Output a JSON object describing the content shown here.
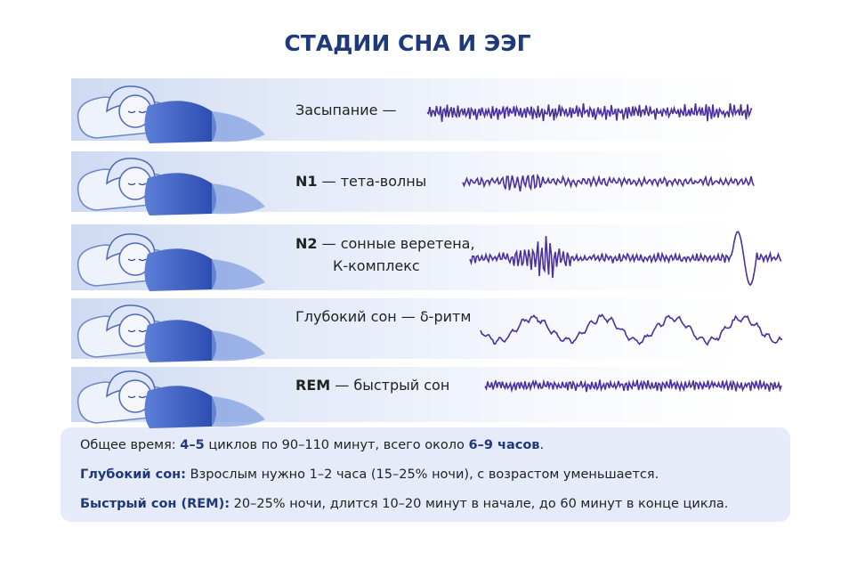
{
  "title": "СТАДИИ СНА И ЭЭГ",
  "stages": [
    {
      "lines": [
        [
          {
            "text": "Засыпание —",
            "bold": false
          }
        ]
      ]
    },
    {
      "lines": [
        [
          {
            "text": "N1",
            "bold": true
          },
          {
            "text": " — тета-волны",
            "bold": false
          }
        ]
      ]
    },
    {
      "lines": [
        [
          {
            "text": "N2",
            "bold": true
          },
          {
            "text": " — сонные веретена,",
            "bold": false
          }
        ],
        [
          {
            "text": "К-комплекс",
            "bold": false
          }
        ]
      ]
    },
    {
      "lines": [
        [
          {
            "text": "Глубокий сон — δ-ритм",
            "bold": false
          }
        ]
      ]
    },
    {
      "lines": [
        [
          {
            "text": "REM",
            "bold": true
          },
          {
            "text": " — быстрый сон",
            "bold": false
          }
        ]
      ]
    }
  ],
  "summary": [
    [
      {
        "text": "Общее время: ",
        "bold": false
      },
      {
        "text": "4–5",
        "bold": true
      },
      {
        "text": " циклов по 90–110 минут, всего около ",
        "bold": false
      },
      {
        "text": "6–9 часов",
        "bold": true
      },
      {
        "text": ".",
        "bold": false
      }
    ],
    [
      {
        "text": "Глубокий сон:",
        "bold": true
      },
      {
        "text": " Взрослым нужно 1–2 часа (15–25% ночи), с возрастом уменьшается.",
        "bold": false
      }
    ],
    [
      {
        "text": "Быстрый сон (REM):",
        "bold": true
      },
      {
        "text": " 20–25% ночи, длится 10–20 минут в начале, до 60 минут в конце цикла.",
        "bold": false
      }
    ]
  ]
}
